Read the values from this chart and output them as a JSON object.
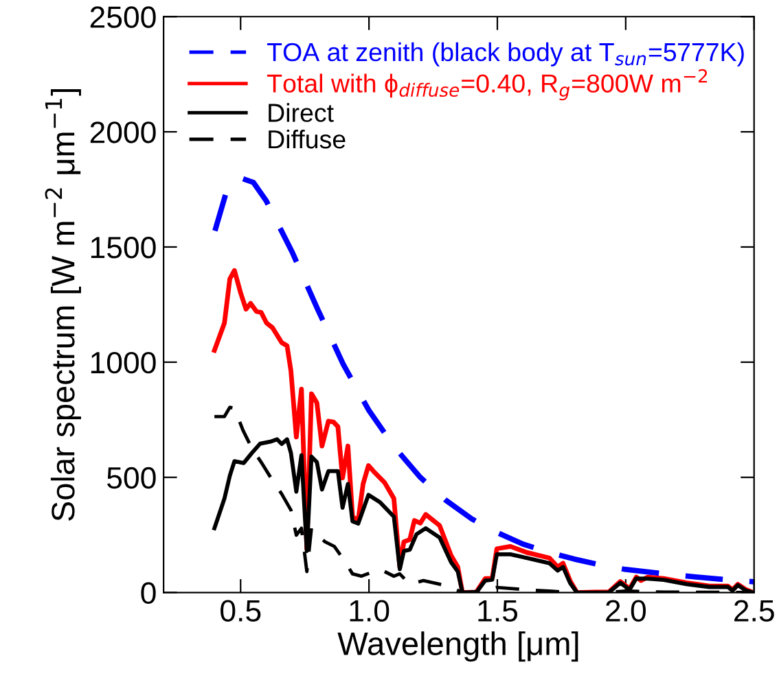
{
  "chart_data": {
    "type": "line",
    "xlabel": "Wavelength [μm]",
    "ylabel": "Solar spectrum [W m$^{−2}$ μm$^{−1}$]",
    "xlim": [
      0.2,
      2.5
    ],
    "ylim": [
      0,
      2500
    ],
    "xticks": [
      {
        "value": 0.5,
        "label": "0.5"
      },
      {
        "value": 1.0,
        "label": "1.0"
      },
      {
        "value": 1.5,
        "label": "1.5"
      },
      {
        "value": 2.0,
        "label": "2.0"
      },
      {
        "value": 2.5,
        "label": "2.5"
      }
    ],
    "yticks": [
      0,
      500,
      1000,
      1500,
      2000,
      2500
    ],
    "legend": "top left",
    "grid": false,
    "marker": "none",
    "series": [
      {
        "name": "TOA at zenith (black body at T$_{sun}$=5777K)",
        "color": "#0000ff",
        "line_style": "dashed",
        "x": [
          0.4,
          0.45,
          0.5,
          0.55,
          0.6,
          0.7,
          0.8,
          0.9,
          1.0,
          1.1,
          1.2,
          1.3,
          1.4,
          1.5,
          1.6,
          1.7,
          1.8,
          1.9,
          2.0,
          2.2,
          2.4,
          2.5
        ],
        "values": [
          1570,
          1760,
          1800,
          1780,
          1700,
          1480,
          1230,
          990,
          790,
          630,
          500,
          400,
          320,
          260,
          210,
          175,
          145,
          120,
          100,
          75,
          55,
          47
        ]
      },
      {
        "name": "Total with ϕ$_{diffuse}$=0.40, R$_{g}$=800W m$^{−2}$",
        "color": "#ff0000",
        "line_style": "solid",
        "x": [
          0.398,
          0.437,
          0.458,
          0.476,
          0.5,
          0.521,
          0.539,
          0.562,
          0.58,
          0.601,
          0.624,
          0.66,
          0.681,
          0.696,
          0.717,
          0.737,
          0.758,
          0.776,
          0.797,
          0.817,
          0.842,
          0.862,
          0.879,
          0.897,
          0.918,
          0.936,
          0.958,
          0.977,
          0.998,
          1.017,
          1.061,
          1.097,
          1.12,
          1.136,
          1.159,
          1.177,
          1.2,
          1.221,
          1.275,
          1.32,
          1.346,
          1.364,
          1.418,
          1.453,
          1.48,
          1.498,
          1.551,
          1.614,
          1.703,
          1.735,
          1.756,
          1.783,
          1.81,
          1.88,
          1.934,
          1.979,
          2.015,
          2.041,
          2.059,
          2.086,
          2.148,
          2.237,
          2.327,
          2.398,
          2.416,
          2.437,
          2.469,
          2.496
        ],
        "values": [
          1051,
          1170,
          1362,
          1398,
          1301,
          1230,
          1255,
          1220,
          1216,
          1170,
          1150,
          1085,
          1071,
          962,
          675,
          883,
          190,
          863,
          824,
          636,
          744,
          740,
          720,
          497,
          636,
          329,
          313,
          471,
          551,
          527,
          477,
          408,
          111,
          220,
          230,
          313,
          301,
          339,
          291,
          160,
          111,
          0,
          2,
          61,
          61,
          190,
          200,
          174,
          150,
          111,
          127,
          52,
          0,
          2,
          2,
          48,
          16,
          67,
          52,
          67,
          61,
          42,
          28,
          28,
          12,
          36,
          12,
          0
        ]
      },
      {
        "name": "Direct",
        "color": "#000000",
        "line_style": "solid",
        "x": [
          0.398,
          0.437,
          0.458,
          0.476,
          0.512,
          0.544,
          0.576,
          0.616,
          0.642,
          0.66,
          0.681,
          0.696,
          0.717,
          0.737,
          0.758,
          0.776,
          0.797,
          0.817,
          0.842,
          0.879,
          0.897,
          0.918,
          0.936,
          0.958,
          0.998,
          1.043,
          1.097,
          1.12,
          1.136,
          1.159,
          1.185,
          1.221,
          1.275,
          1.32,
          1.346,
          1.364,
          1.418,
          1.453,
          1.48,
          1.498,
          1.551,
          1.614,
          1.703,
          1.735,
          1.756,
          1.783,
          1.81,
          1.88,
          1.934,
          1.979,
          2.015,
          2.041,
          2.086,
          2.148,
          2.237,
          2.327,
          2.398,
          2.416,
          2.437,
          2.469,
          2.496
        ],
        "values": [
          279,
          408,
          507,
          570,
          562,
          606,
          646,
          655,
          665,
          645,
          665,
          606,
          438,
          596,
          180,
          590,
          566,
          447,
          527,
          527,
          368,
          471,
          309,
          299,
          424,
          392,
          329,
          101,
          180,
          186,
          253,
          279,
          239,
          131,
          91,
          0,
          0,
          52,
          56,
          166,
          166,
          150,
          127,
          95,
          111,
          42,
          0,
          0,
          0,
          42,
          12,
          61,
          60,
          55,
          36,
          24,
          24,
          8,
          32,
          8,
          0
        ]
      },
      {
        "name": "Diffuse",
        "color": "#000000",
        "line_style": "dashed",
        "x": [
          0.398,
          0.437,
          0.458,
          0.476,
          0.509,
          0.544,
          0.58,
          0.624,
          0.66,
          0.696,
          0.717,
          0.737,
          0.758,
          0.776,
          0.797,
          0.829,
          0.865,
          0.897,
          0.936,
          0.97,
          1.043,
          1.097,
          1.12,
          1.159,
          1.212,
          1.275,
          1.32,
          1.364,
          1.453,
          1.498,
          1.614,
          1.703,
          1.783,
          1.9,
          2.0,
          2.148,
          2.5
        ],
        "values": [
          764,
          764,
          804,
          800,
          705,
          626,
          566,
          487,
          428,
          358,
          249,
          279,
          91,
          279,
          253,
          220,
          200,
          150,
          81,
          71,
          101,
          71,
          81,
          36,
          52,
          36,
          22,
          0,
          6,
          22,
          12,
          6,
          0,
          0,
          6,
          2,
          0
        ]
      }
    ]
  }
}
